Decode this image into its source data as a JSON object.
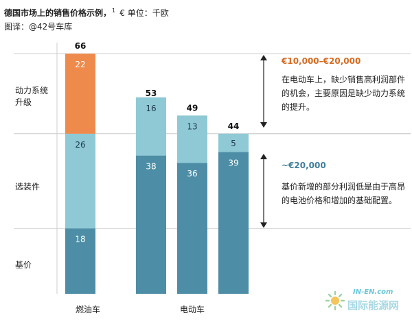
{
  "header": {
    "title": "德国市场上的销售价格示例，",
    "superscript": "1",
    "unit": "€ 单位：千欧",
    "source": "图译：@42号车库"
  },
  "row_labels": [
    "动力系统升级",
    "选装件",
    "基价"
  ],
  "annotations": [
    {
      "heading": "€10,000–€20,000",
      "body": "在电动车上，缺少销售高利润部件的机会，主要原因是缺少动力系统的提升。"
    },
    {
      "heading": "~€20,000",
      "body": "基价新增的部分利润低是由于高昂的电池价格和增加的基础配置。"
    }
  ],
  "watermark": {
    "top": "IN-EN.com",
    "main": "国际能源网"
  },
  "colors": {
    "powertrain_ice": "#ef8a4d",
    "options": "#8ec9d5",
    "base": "#4d8ea6",
    "line": "#cccccc",
    "arrow": "#222222"
  },
  "chart_data": {
    "type": "bar",
    "stacked": true,
    "categories": [
      "燃油车",
      "电动车"
    ],
    "group_label_shown_once": "电动车",
    "bars": [
      {
        "category": "燃油车",
        "total": 66,
        "segments": {
          "base": 18,
          "options": 26,
          "powertrain": 22
        }
      },
      {
        "category": "电动车",
        "total": 53,
        "segments": {
          "base": 38,
          "options": 16
        }
      },
      {
        "category": "电动车",
        "total": 49,
        "segments": {
          "base": 36,
          "options": 13
        }
      },
      {
        "category": "电动车",
        "total": 44,
        "segments": {
          "base": 39,
          "options": 5
        }
      }
    ],
    "series": [
      {
        "name": "基价",
        "key": "base"
      },
      {
        "name": "选装件",
        "key": "options"
      },
      {
        "name": "动力系统升级",
        "key": "powertrain"
      }
    ],
    "ylim": [
      0,
      66
    ]
  }
}
